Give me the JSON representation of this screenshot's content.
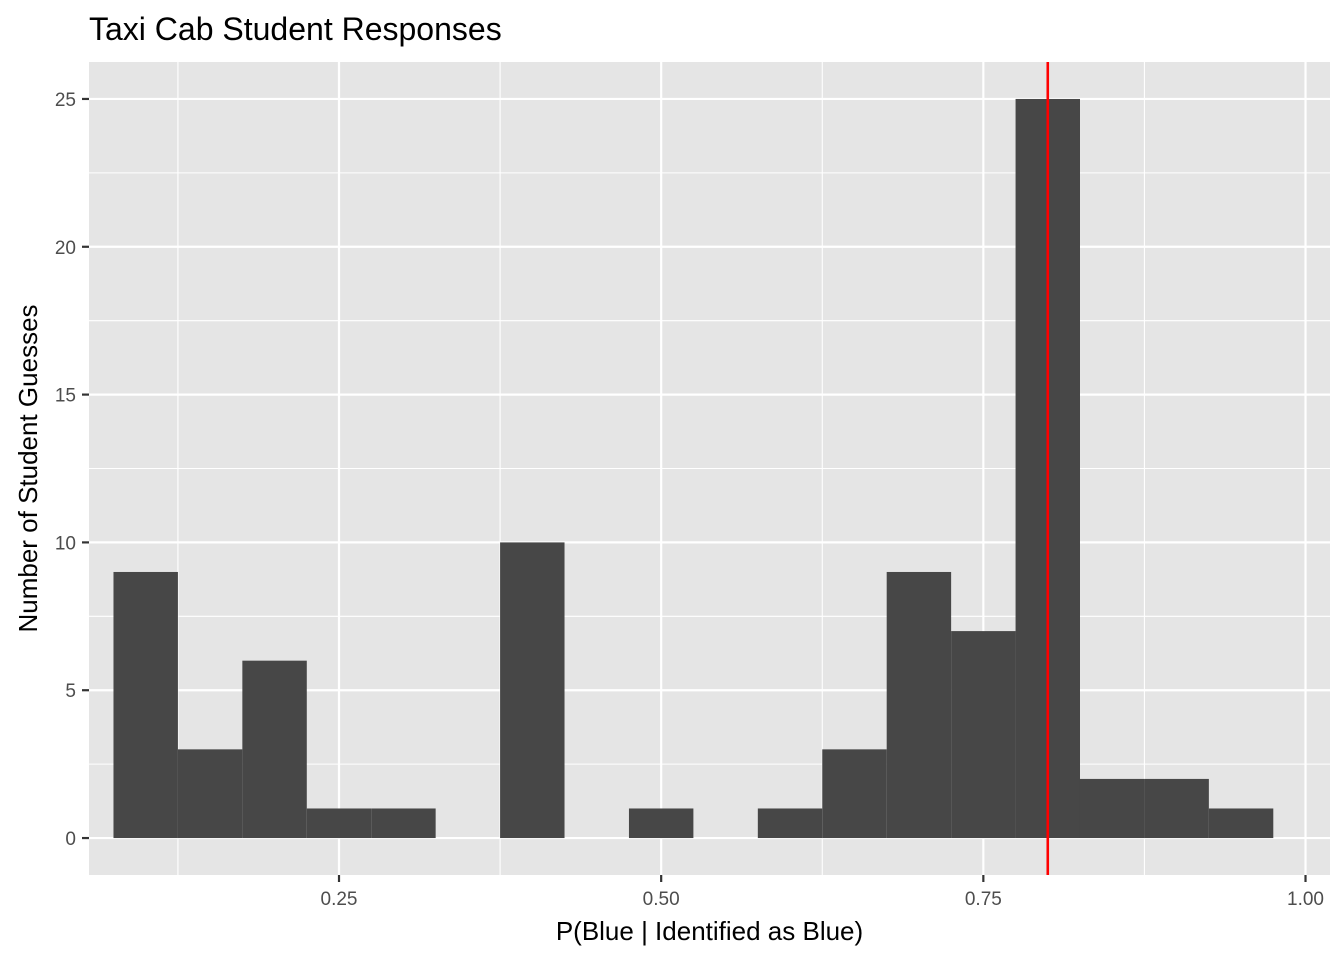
{
  "chart_data": {
    "type": "bar",
    "title": "Taxi Cab Student Responses",
    "xlabel": "P(Blue | Identified as Blue)",
    "ylabel": "Number of Student Guesses",
    "xlim": [
      0.056,
      1.019
    ],
    "ylim": [
      -1.25,
      26.25
    ],
    "x_ticks": [
      0.25,
      0.5,
      0.75,
      1.0
    ],
    "x_tick_labels": [
      "0.25",
      "0.50",
      "0.75",
      "1.00"
    ],
    "y_ticks": [
      0,
      5,
      10,
      15,
      20,
      25
    ],
    "y_tick_labels": [
      "0",
      "5",
      "10",
      "15",
      "20",
      "25"
    ],
    "bin_width": 0.05,
    "bins": [
      {
        "x_start": 0.075,
        "x_end": 0.125,
        "count": 9
      },
      {
        "x_start": 0.125,
        "x_end": 0.175,
        "count": 3
      },
      {
        "x_start": 0.175,
        "x_end": 0.225,
        "count": 6
      },
      {
        "x_start": 0.225,
        "x_end": 0.275,
        "count": 1
      },
      {
        "x_start": 0.275,
        "x_end": 0.325,
        "count": 1
      },
      {
        "x_start": 0.325,
        "x_end": 0.375,
        "count": 0
      },
      {
        "x_start": 0.375,
        "x_end": 0.425,
        "count": 10
      },
      {
        "x_start": 0.425,
        "x_end": 0.475,
        "count": 0
      },
      {
        "x_start": 0.475,
        "x_end": 0.525,
        "count": 1
      },
      {
        "x_start": 0.525,
        "x_end": 0.575,
        "count": 0
      },
      {
        "x_start": 0.575,
        "x_end": 0.625,
        "count": 1
      },
      {
        "x_start": 0.625,
        "x_end": 0.675,
        "count": 3
      },
      {
        "x_start": 0.675,
        "x_end": 0.725,
        "count": 9
      },
      {
        "x_start": 0.725,
        "x_end": 0.775,
        "count": 7
      },
      {
        "x_start": 0.775,
        "x_end": 0.825,
        "count": 25
      },
      {
        "x_start": 0.825,
        "x_end": 0.875,
        "count": 2
      },
      {
        "x_start": 0.875,
        "x_end": 0.925,
        "count": 2
      },
      {
        "x_start": 0.925,
        "x_end": 0.975,
        "count": 1
      }
    ],
    "reference_line": {
      "x": 0.8,
      "color": "#ff0000"
    },
    "grid": true,
    "colors": {
      "panel_background": "#e5e5e5",
      "grid": "#ffffff",
      "bar_fill": "#474747",
      "tick_label": "#4d4d4d"
    }
  }
}
